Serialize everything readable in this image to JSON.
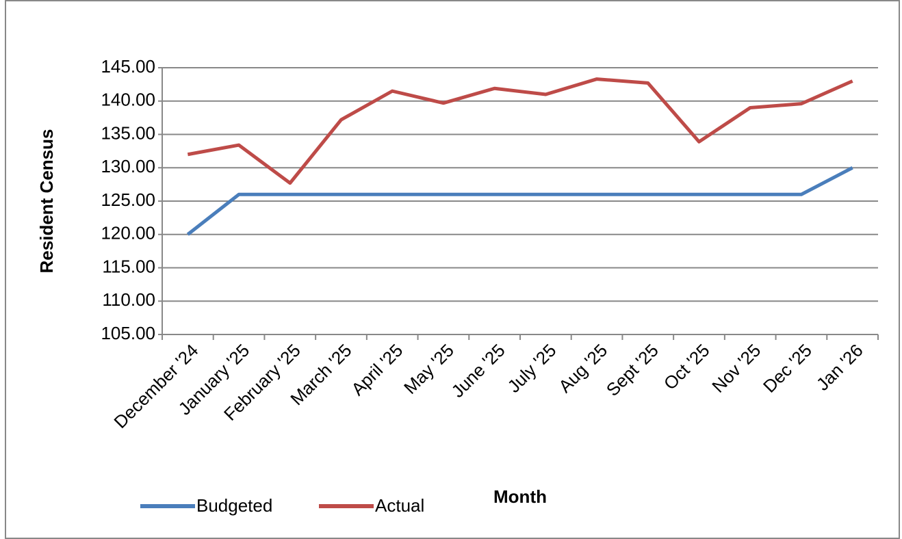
{
  "chart_data": {
    "type": "line",
    "x_label": "Month",
    "y_label": "Resident Census",
    "categories": [
      "December '24",
      "January '25",
      "February '25",
      "March '25",
      "April '25",
      "May '25",
      "June '25",
      "July '25",
      "Aug '25",
      "Sept '25",
      "Oct '25",
      "Nov '25",
      "Dec '25",
      "Jan '26"
    ],
    "series": [
      {
        "name": "Budgeted",
        "color": "#4a7ebb",
        "values": [
          120,
          126,
          126,
          126,
          126,
          126,
          126,
          126,
          126,
          126,
          126,
          126,
          126,
          130
        ]
      },
      {
        "name": "Actual",
        "color": "#be4b48",
        "values": [
          132,
          133.4,
          127.7,
          137.2,
          141.5,
          139.7,
          141.9,
          141,
          143.3,
          142.7,
          133.9,
          139,
          139.6,
          143
        ]
      }
    ],
    "ylim": [
      105,
      145
    ],
    "yticks": [
      {
        "value": 105,
        "label": "105.00"
      },
      {
        "value": 110,
        "label": "110.00"
      },
      {
        "value": 115,
        "label": "115.00"
      },
      {
        "value": 120,
        "label": "120.00"
      },
      {
        "value": 125,
        "label": "125.00"
      },
      {
        "value": 130,
        "label": "130.00"
      },
      {
        "value": 135,
        "label": "135.00"
      },
      {
        "value": 140,
        "label": "140.00"
      },
      {
        "value": 145,
        "label": "145.00"
      }
    ],
    "grid": true,
    "legend": "bottom"
  }
}
